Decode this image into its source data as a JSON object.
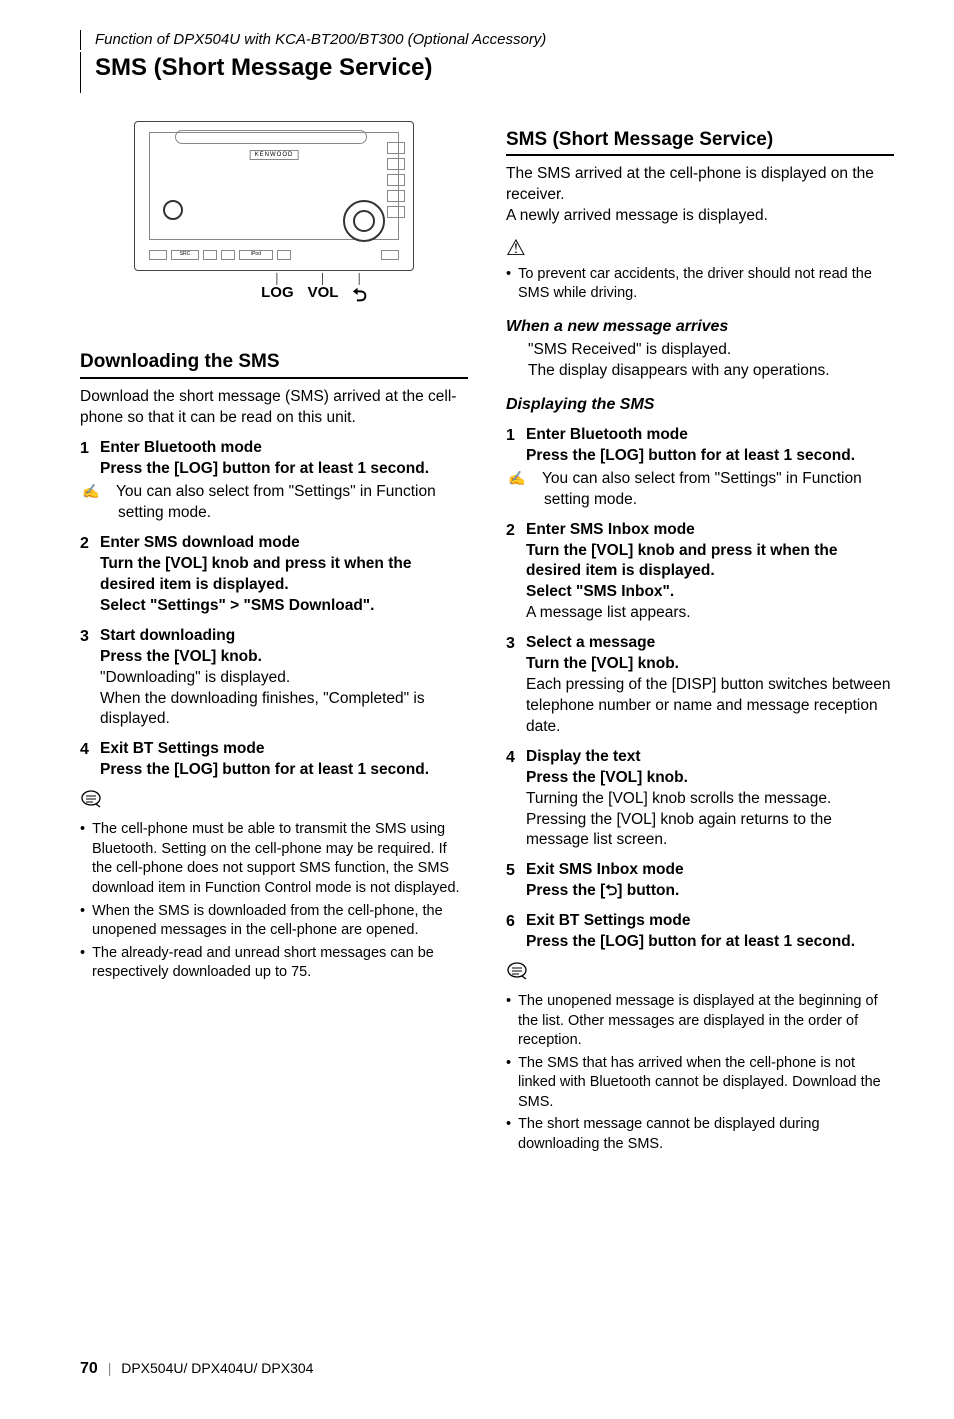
{
  "header": {
    "context": "Function of DPX504U with KCA-BT200/BT300 (Optional Accessory)",
    "title": "SMS (Short Message Service)"
  },
  "device": {
    "brand": "KENWOOD",
    "labels": {
      "log": "LOG",
      "vol": "VOL"
    },
    "btn_src": "SRC",
    "ipod": "iPod"
  },
  "left": {
    "section_title": "Downloading the SMS",
    "intro": "Download the short message (SMS) arrived at the cell-phone so that it can be read on this unit.",
    "steps": [
      {
        "n": "1",
        "title": "Enter Bluetooth mode",
        "bold": "Press the [LOG] button for at least 1 second.",
        "hand": "You can also select from \"Settings\" in Function setting mode."
      },
      {
        "n": "2",
        "title": "Enter SMS download mode",
        "bold1": "Turn the [VOL] knob and press it when the desired item is displayed.",
        "bold2a": "Select \"Settings\"",
        "bold2b": "\"SMS Download\"."
      },
      {
        "n": "3",
        "title": "Start downloading",
        "bold": "Press the [VOL] knob.",
        "plain1": "\"Downloading\" is displayed.",
        "plain2": "When the downloading finishes, \"Completed\" is displayed."
      },
      {
        "n": "4",
        "title": "Exit BT Settings mode",
        "bold": "Press the [LOG] button for at least 1 second."
      }
    ],
    "notes": [
      "The cell-phone must be able to transmit the SMS using Bluetooth. Setting on the cell-phone may be required. If the cell-phone does not support SMS function, the SMS download item in Function Control mode is not displayed.",
      "When the SMS is downloaded from the cell-phone, the unopened messages in the cell-phone are opened.",
      "The already-read and unread short messages can be respectively downloaded up to 75."
    ]
  },
  "right": {
    "section_title": "SMS (Short Message Service)",
    "intro1": "The SMS arrived at the cell-phone is displayed on the receiver.",
    "intro2": "A newly arrived message is displayed.",
    "warn_notes": [
      "To prevent car accidents, the driver should not read the SMS while driving."
    ],
    "sub1": "When a new message arrives",
    "sub1_l1": "\"SMS Received\" is displayed.",
    "sub1_l2": "The display disappears with any operations.",
    "sub2": "Displaying the SMS",
    "steps": [
      {
        "n": "1",
        "title": "Enter Bluetooth mode",
        "bold": "Press the [LOG] button for at least 1 second.",
        "hand": "You can also select from \"Settings\" in Function setting mode."
      },
      {
        "n": "2",
        "title": "Enter SMS Inbox mode",
        "bold1": "Turn the [VOL] knob and press it when the desired item is displayed.",
        "bold2": "Select \"SMS Inbox\".",
        "plain": "A message list appears."
      },
      {
        "n": "3",
        "title": "Select a message",
        "bold": "Turn the [VOL] knob.",
        "plain": "Each pressing of the [DISP] button switches between telephone number or name and message reception date."
      },
      {
        "n": "4",
        "title": "Display the text",
        "bold": "Press the [VOL] knob.",
        "plain": "Turning the [VOL] knob scrolls the message. Pressing the [VOL] knob again returns to the message list screen."
      },
      {
        "n": "5",
        "title": "Exit SMS Inbox mode",
        "bold_pre": "Press the [",
        "bold_post": "] button."
      },
      {
        "n": "6",
        "title": "Exit BT Settings mode",
        "bold": "Press the [LOG] button for at least 1 second."
      }
    ],
    "notes": [
      "The unopened message is displayed at the beginning of the list. Other messages are displayed in the order of reception.",
      "The SMS that has arrived when the cell-phone is not linked with Bluetooth cannot be displayed. Download the SMS.",
      "The short message cannot be displayed during downloading the SMS."
    ]
  },
  "footer": {
    "page": "70",
    "models": "DPX504U/ DPX404U/ DPX304"
  }
}
